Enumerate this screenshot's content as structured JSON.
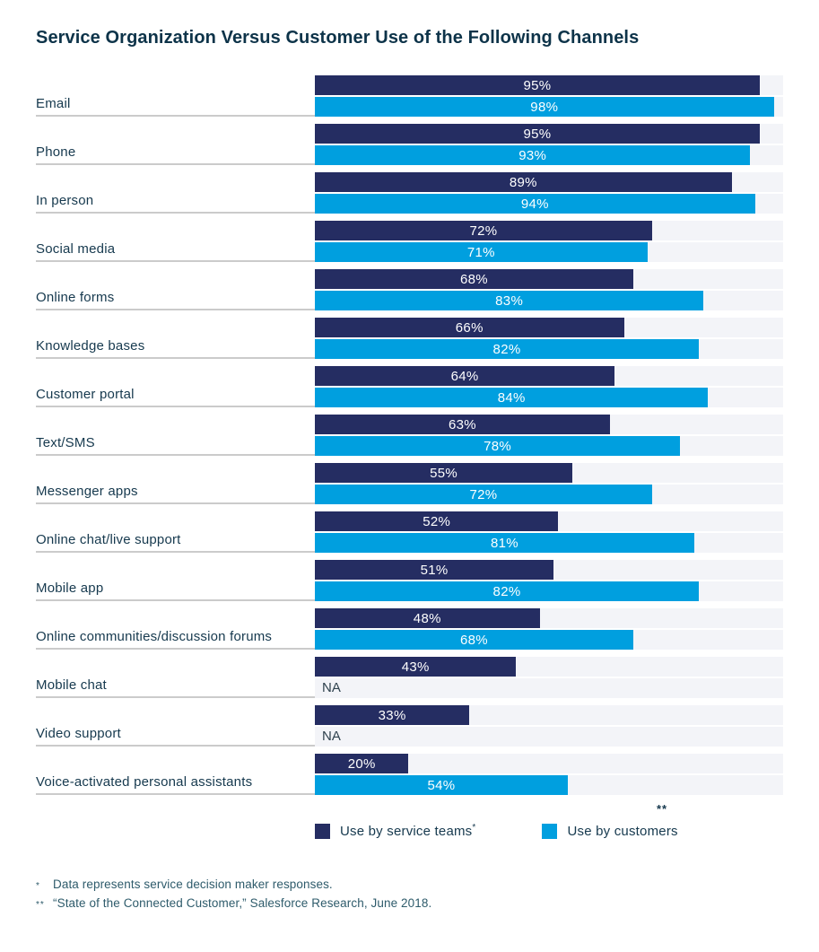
{
  "title": "Service Organization Versus Customer Use of the Following Channels",
  "chart_data": {
    "type": "bar",
    "orientation": "horizontal",
    "title": "Service Organization Versus Customer Use of the Following Channels",
    "categories": [
      "Email",
      "Phone",
      "In person",
      "Social media",
      "Online forms",
      "Knowledge bases",
      "Customer portal",
      "Text/SMS",
      "Messenger apps",
      "Online chat/live support",
      "Mobile app",
      "Online communities/discussion forums",
      "Mobile chat",
      "Video support",
      "Voice-activated personal assistants"
    ],
    "series": [
      {
        "name": "Use by service teams",
        "color": "#252d62",
        "values": [
          95,
          95,
          89,
          72,
          68,
          66,
          64,
          63,
          55,
          52,
          51,
          48,
          43,
          33,
          20
        ]
      },
      {
        "name": "Use by customers",
        "color": "#009fdf",
        "values": [
          98,
          93,
          94,
          71,
          83,
          82,
          84,
          78,
          72,
          81,
          82,
          68,
          null,
          null,
          54
        ]
      }
    ],
    "value_format": "percent",
    "na_label": "NA",
    "xlim": [
      0,
      100
    ],
    "grid": false,
    "legend_position": "bottom",
    "source_marker": "**"
  },
  "legend": [
    {
      "label": "Use by service teams",
      "marker": "*",
      "color": "#252d62"
    },
    {
      "label": "Use by customers",
      "marker": "",
      "color": "#009fdf"
    }
  ],
  "footnotes": [
    {
      "marker": "*",
      "text": "Data represents service decision maker responses."
    },
    {
      "marker": "**",
      "text": "“State of the Connected Customer,” Salesforce Research, June 2018."
    }
  ],
  "colors": {
    "service_teams": "#252d62",
    "customers": "#009fdf",
    "track": "#f3f4f8",
    "title_text": "#0d3349",
    "label_text": "#16394e",
    "na_text": "#2f424e",
    "underline": "#cbcbcb",
    "footnote_text": "#2e5b6b"
  }
}
